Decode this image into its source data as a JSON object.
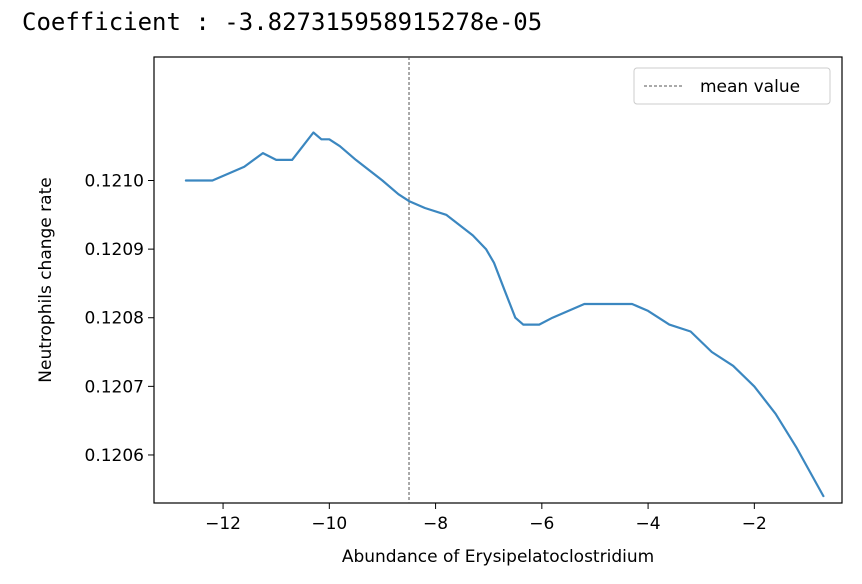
{
  "header": {
    "coefficient_text": "Coefficient : -3.827315958915278e-05"
  },
  "chart_data": {
    "type": "line",
    "xlabel": "Abundance of Erysipelatoclostridium",
    "ylabel": "Neutrophils change rate",
    "xlim": [
      -13.3,
      -0.35
    ],
    "ylim": [
      0.12053,
      0.12118
    ],
    "xticks": [
      -12,
      -10,
      -8,
      -6,
      -4,
      -2
    ],
    "xtick_labels": [
      "−12",
      "−10",
      "−8",
      "−6",
      "−4",
      "−2"
    ],
    "yticks": [
      0.1206,
      0.1207,
      0.1208,
      0.1209,
      0.121
    ],
    "ytick_labels": [
      "0.1206",
      "0.1207",
      "0.1208",
      "0.1209",
      "0.1210"
    ],
    "grid": false,
    "legend_position": "top-right",
    "line_color": "#3b87c0",
    "mean_line_color": "#555555",
    "series": [
      {
        "name": "",
        "x": [
          -12.7,
          -12.4,
          -12.2,
          -11.9,
          -11.6,
          -11.25,
          -11.0,
          -10.7,
          -10.5,
          -10.3,
          -10.15,
          -10.0,
          -9.8,
          -9.5,
          -9.0,
          -8.7,
          -8.5,
          -8.2,
          -7.8,
          -7.3,
          -7.05,
          -6.9,
          -6.7,
          -6.5,
          -6.35,
          -6.2,
          -6.05,
          -5.8,
          -5.5,
          -5.2,
          -4.8,
          -4.4,
          -4.3,
          -4.0,
          -3.6,
          -3.2,
          -2.8,
          -2.4,
          -2.0,
          -1.6,
          -1.2,
          -0.7
        ],
        "y": [
          0.121,
          0.121,
          0.121,
          0.12101,
          0.12102,
          0.12104,
          0.12103,
          0.12103,
          0.12105,
          0.12107,
          0.12106,
          0.12106,
          0.12105,
          0.12103,
          0.121,
          0.12098,
          0.12097,
          0.12096,
          0.12095,
          0.12092,
          0.1209,
          0.12088,
          0.12084,
          0.1208,
          0.12079,
          0.12079,
          0.12079,
          0.1208,
          0.12081,
          0.12082,
          0.12082,
          0.12082,
          0.12082,
          0.12081,
          0.12079,
          0.12078,
          0.12075,
          0.12073,
          0.1207,
          0.12066,
          0.12061,
          0.12054
        ]
      }
    ],
    "mean_value": {
      "label": "mean value",
      "x": -8.5
    }
  }
}
